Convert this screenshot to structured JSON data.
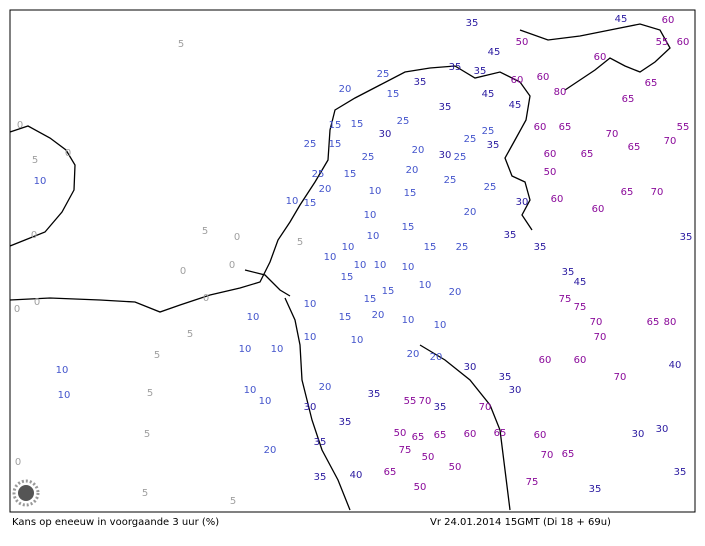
{
  "caption": "Kans op eneeuw in voorgaande 3 uur (%)",
  "timestamp": "Vr 24.01.2014 15GMT (Di 18 + 69u)",
  "labels": [
    5,
    0,
    5,
    0,
    5,
    0,
    0,
    5,
    0,
    0,
    0,
    5,
    5,
    5,
    5,
    5,
    5,
    0,
    0,
    0,
    10,
    10,
    10,
    25,
    20,
    15,
    15,
    15,
    25,
    15,
    25,
    20,
    20,
    25,
    15,
    20,
    10,
    15,
    10,
    15,
    10,
    10,
    10,
    10,
    15,
    15,
    10,
    10,
    10,
    15,
    15,
    15,
    10,
    20,
    10,
    15,
    20,
    10,
    10,
    10,
    10,
    10,
    20,
    20,
    10,
    10,
    10,
    10,
    20,
    20,
    20,
    25,
    25,
    25,
    25,
    25,
    25,
    30,
    30,
    25,
    35,
    45,
    35,
    35,
    35,
    35,
    45,
    45,
    35,
    35,
    35,
    30,
    35,
    45,
    30,
    35,
    35,
    35,
    40,
    35,
    30,
    35,
    35,
    35,
    30,
    30,
    35,
    30,
    40,
    35,
    45,
    60,
    55,
    60,
    65,
    65,
    55,
    70,
    65,
    70,
    65,
    60,
    60,
    60,
    80,
    50,
    60,
    60,
    65,
    50,
    60,
    60,
    65,
    70,
    75,
    75,
    70,
    65,
    80,
    70,
    70,
    60,
    60,
    55,
    70,
    70,
    65,
    60,
    65,
    65,
    50,
    75,
    50,
    60,
    70,
    65,
    75,
    50,
    65,
    50
  ]
}
